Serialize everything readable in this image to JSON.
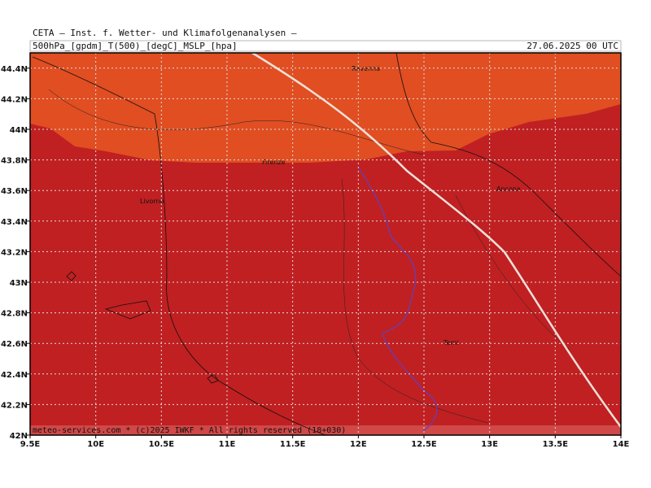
{
  "header": {
    "title": "CETA — Inst. f. Wetter- und Klimafolgenanalysen —",
    "product": "500hPa_[gpdm]_T(500)_[degC]_MSLP_[hpa]",
    "valid": "27.06.2025 00 UTC"
  },
  "map": {
    "lonlim": [
      9.5,
      14
    ],
    "latlim": [
      42,
      44.5
    ],
    "lon_ticks": [
      {
        "value": 9.5,
        "label": "9.5E"
      },
      {
        "value": 10,
        "label": "10E"
      },
      {
        "value": 10.5,
        "label": "10.5E"
      },
      {
        "value": 11,
        "label": "11E"
      },
      {
        "value": 11.5,
        "label": "11.5E"
      },
      {
        "value": 12,
        "label": "12E"
      },
      {
        "value": 12.5,
        "label": "12.5E"
      },
      {
        "value": 13,
        "label": "13E"
      },
      {
        "value": 13.5,
        "label": "13.5E"
      },
      {
        "value": 14,
        "label": "14E"
      }
    ],
    "lat_ticks": [
      {
        "value": 42,
        "label": "42N"
      },
      {
        "value": 42.2,
        "label": "42.2N"
      },
      {
        "value": 42.4,
        "label": "42.4N"
      },
      {
        "value": 42.6,
        "label": "42.6N"
      },
      {
        "value": 42.8,
        "label": "42.8N"
      },
      {
        "value": 43,
        "label": "43N"
      },
      {
        "value": 43.2,
        "label": "43.2N"
      },
      {
        "value": 43.4,
        "label": "43.4N"
      },
      {
        "value": 43.6,
        "label": "43.6N"
      },
      {
        "value": 43.8,
        "label": "43.8N"
      },
      {
        "value": 44,
        "label": "44N"
      },
      {
        "value": 44.2,
        "label": "44.2N"
      },
      {
        "value": 44.4,
        "label": "44.4N"
      }
    ],
    "cities": [
      "Ravenna",
      "Firenze",
      "Ancona",
      "Livorno",
      "Terni"
    ],
    "footer": "meteo-services.com * (c)2025 IWKF * All rights reserved (18+030)"
  }
}
